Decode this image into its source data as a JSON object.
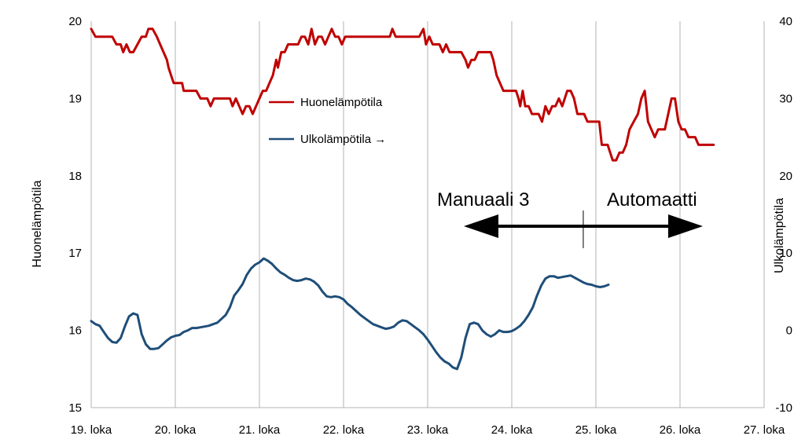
{
  "chart_data": {
    "type": "line",
    "x_unit": "day",
    "x_ticks": [
      "19. loka",
      "20. loka",
      "21. loka",
      "22. loka",
      "23. loka",
      "24. loka",
      "25. loka",
      "26. loka",
      "27. loka"
    ],
    "y_left_label": "Huonelämpötila",
    "y_left_lim": [
      15,
      20
    ],
    "y_left_ticks": [
      "15",
      "16",
      "17",
      "18",
      "19",
      "20"
    ],
    "y_right_label": "Ulkolämpötila",
    "y_right_lim": [
      -10,
      40
    ],
    "y_right_ticks": [
      "-10",
      "0",
      "10",
      "20",
      "30",
      "40"
    ],
    "grid": "vertical",
    "legend_position": "upper-middle",
    "annotations": {
      "left": "Manuaali 3",
      "right": "Automaatti",
      "divider_x": 24.85
    },
    "series": [
      {
        "name": "Huonelämpötila",
        "axis": "left",
        "color": "#c00000",
        "points": [
          [
            19.0,
            19.9
          ],
          [
            19.05,
            19.8
          ],
          [
            19.1,
            19.8
          ],
          [
            19.15,
            19.8
          ],
          [
            19.2,
            19.8
          ],
          [
            19.25,
            19.8
          ],
          [
            19.3,
            19.7
          ],
          [
            19.35,
            19.7
          ],
          [
            19.38,
            19.6
          ],
          [
            19.42,
            19.7
          ],
          [
            19.46,
            19.6
          ],
          [
            19.5,
            19.6
          ],
          [
            19.55,
            19.7
          ],
          [
            19.6,
            19.8
          ],
          [
            19.65,
            19.8
          ],
          [
            19.68,
            19.9
          ],
          [
            19.73,
            19.9
          ],
          [
            19.78,
            19.8
          ],
          [
            19.82,
            19.7
          ],
          [
            19.86,
            19.6
          ],
          [
            19.9,
            19.5
          ],
          [
            19.92,
            19.4
          ],
          [
            19.95,
            19.3
          ],
          [
            19.98,
            19.2
          ],
          [
            20.02,
            19.2
          ],
          [
            20.05,
            19.2
          ],
          [
            20.08,
            19.2
          ],
          [
            20.1,
            19.1
          ],
          [
            20.15,
            19.1
          ],
          [
            20.2,
            19.1
          ],
          [
            20.25,
            19.1
          ],
          [
            20.3,
            19.0
          ],
          [
            20.35,
            19.0
          ],
          [
            20.38,
            19.0
          ],
          [
            20.42,
            18.9
          ],
          [
            20.46,
            19.0
          ],
          [
            20.5,
            19.0
          ],
          [
            20.55,
            19.0
          ],
          [
            20.6,
            19.0
          ],
          [
            20.65,
            19.0
          ],
          [
            20.68,
            18.9
          ],
          [
            20.72,
            19.0
          ],
          [
            20.76,
            18.9
          ],
          [
            20.8,
            18.8
          ],
          [
            20.84,
            18.9
          ],
          [
            20.88,
            18.9
          ],
          [
            20.92,
            18.8
          ],
          [
            20.96,
            18.9
          ],
          [
            21.0,
            19.0
          ],
          [
            21.04,
            19.1
          ],
          [
            21.08,
            19.1
          ],
          [
            21.12,
            19.2
          ],
          [
            21.16,
            19.3
          ],
          [
            21.2,
            19.5
          ],
          [
            21.22,
            19.4
          ],
          [
            21.26,
            19.6
          ],
          [
            21.3,
            19.6
          ],
          [
            21.34,
            19.7
          ],
          [
            21.38,
            19.7
          ],
          [
            21.42,
            19.7
          ],
          [
            21.46,
            19.7
          ],
          [
            21.5,
            19.8
          ],
          [
            21.54,
            19.8
          ],
          [
            21.58,
            19.7
          ],
          [
            21.62,
            19.9
          ],
          [
            21.66,
            19.7
          ],
          [
            21.7,
            19.8
          ],
          [
            21.74,
            19.8
          ],
          [
            21.78,
            19.7
          ],
          [
            21.82,
            19.8
          ],
          [
            21.86,
            19.9
          ],
          [
            21.9,
            19.8
          ],
          [
            21.94,
            19.8
          ],
          [
            21.98,
            19.7
          ],
          [
            22.02,
            19.8
          ],
          [
            22.06,
            19.8
          ],
          [
            22.1,
            19.8
          ],
          [
            22.2,
            19.8
          ],
          [
            22.3,
            19.8
          ],
          [
            22.4,
            19.8
          ],
          [
            22.5,
            19.8
          ],
          [
            22.55,
            19.8
          ],
          [
            22.58,
            19.9
          ],
          [
            22.62,
            19.8
          ],
          [
            22.7,
            19.8
          ],
          [
            22.8,
            19.8
          ],
          [
            22.9,
            19.8
          ],
          [
            22.95,
            19.9
          ],
          [
            22.98,
            19.7
          ],
          [
            23.02,
            19.8
          ],
          [
            23.06,
            19.7
          ],
          [
            23.1,
            19.7
          ],
          [
            23.14,
            19.7
          ],
          [
            23.18,
            19.6
          ],
          [
            23.22,
            19.7
          ],
          [
            23.26,
            19.6
          ],
          [
            23.3,
            19.6
          ],
          [
            23.35,
            19.6
          ],
          [
            23.4,
            19.6
          ],
          [
            23.45,
            19.5
          ],
          [
            23.48,
            19.4
          ],
          [
            23.52,
            19.5
          ],
          [
            23.56,
            19.5
          ],
          [
            23.6,
            19.6
          ],
          [
            23.65,
            19.6
          ],
          [
            23.7,
            19.6
          ],
          [
            23.75,
            19.6
          ],
          [
            23.78,
            19.5
          ],
          [
            23.82,
            19.3
          ],
          [
            23.86,
            19.2
          ],
          [
            23.9,
            19.1
          ],
          [
            23.95,
            19.1
          ],
          [
            24.0,
            19.1
          ],
          [
            24.05,
            19.1
          ],
          [
            24.08,
            19.0
          ],
          [
            24.1,
            18.9
          ],
          [
            24.13,
            19.1
          ],
          [
            24.16,
            18.9
          ],
          [
            24.2,
            18.9
          ],
          [
            24.24,
            18.8
          ],
          [
            24.28,
            18.8
          ],
          [
            24.32,
            18.8
          ],
          [
            24.36,
            18.7
          ],
          [
            24.4,
            18.9
          ],
          [
            24.44,
            18.8
          ],
          [
            24.48,
            18.9
          ],
          [
            24.52,
            18.9
          ],
          [
            24.56,
            19.0
          ],
          [
            24.6,
            18.9
          ],
          [
            24.63,
            19.0
          ],
          [
            24.66,
            19.1
          ],
          [
            24.7,
            19.1
          ],
          [
            24.74,
            19.0
          ],
          [
            24.78,
            18.8
          ],
          [
            24.82,
            18.8
          ],
          [
            24.86,
            18.8
          ],
          [
            24.9,
            18.7
          ],
          [
            24.95,
            18.7
          ],
          [
            25.0,
            18.7
          ],
          [
            25.04,
            18.7
          ],
          [
            25.07,
            18.4
          ],
          [
            25.1,
            18.4
          ],
          [
            25.14,
            18.4
          ],
          [
            25.17,
            18.3
          ],
          [
            25.2,
            18.2
          ],
          [
            25.24,
            18.2
          ],
          [
            25.28,
            18.3
          ],
          [
            25.32,
            18.3
          ],
          [
            25.36,
            18.4
          ],
          [
            25.4,
            18.6
          ],
          [
            25.45,
            18.7
          ],
          [
            25.5,
            18.8
          ],
          [
            25.54,
            19.0
          ],
          [
            25.58,
            19.1
          ],
          [
            25.62,
            18.7
          ],
          [
            25.66,
            18.6
          ],
          [
            25.7,
            18.5
          ],
          [
            25.74,
            18.6
          ],
          [
            25.78,
            18.6
          ],
          [
            25.82,
            18.6
          ],
          [
            25.86,
            18.8
          ],
          [
            25.9,
            19.0
          ],
          [
            25.94,
            19.0
          ],
          [
            25.98,
            18.7
          ],
          [
            26.02,
            18.6
          ],
          [
            26.06,
            18.6
          ],
          [
            26.1,
            18.5
          ],
          [
            26.14,
            18.5
          ],
          [
            26.18,
            18.5
          ],
          [
            26.22,
            18.4
          ],
          [
            26.26,
            18.4
          ],
          [
            26.3,
            18.4
          ],
          [
            26.35,
            18.4
          ],
          [
            26.4,
            18.4
          ]
        ]
      },
      {
        "name": "Ulkolämpötila →",
        "axis": "right",
        "color": "#1f4e79",
        "points": [
          [
            19.0,
            1.2
          ],
          [
            19.05,
            0.8
          ],
          [
            19.1,
            0.6
          ],
          [
            19.15,
            -0.2
          ],
          [
            19.2,
            -1.0
          ],
          [
            19.25,
            -1.5
          ],
          [
            19.3,
            -1.6
          ],
          [
            19.35,
            -1.0
          ],
          [
            19.4,
            0.5
          ],
          [
            19.45,
            1.8
          ],
          [
            19.5,
            2.2
          ],
          [
            19.55,
            2.0
          ],
          [
            19.6,
            -0.5
          ],
          [
            19.65,
            -1.8
          ],
          [
            19.7,
            -2.4
          ],
          [
            19.75,
            -2.4
          ],
          [
            19.8,
            -2.3
          ],
          [
            19.85,
            -1.8
          ],
          [
            19.9,
            -1.3
          ],
          [
            19.95,
            -0.9
          ],
          [
            20.0,
            -0.7
          ],
          [
            20.05,
            -0.6
          ],
          [
            20.1,
            -0.2
          ],
          [
            20.15,
            0.0
          ],
          [
            20.2,
            0.3
          ],
          [
            20.25,
            0.3
          ],
          [
            20.3,
            0.4
          ],
          [
            20.35,
            0.5
          ],
          [
            20.4,
            0.6
          ],
          [
            20.45,
            0.8
          ],
          [
            20.5,
            1.0
          ],
          [
            20.55,
            1.5
          ],
          [
            20.6,
            2.0
          ],
          [
            20.65,
            3.0
          ],
          [
            20.7,
            4.5
          ],
          [
            20.75,
            5.2
          ],
          [
            20.8,
            6.0
          ],
          [
            20.85,
            7.2
          ],
          [
            20.9,
            8.0
          ],
          [
            20.95,
            8.5
          ],
          [
            21.0,
            8.8
          ],
          [
            21.05,
            9.3
          ],
          [
            21.1,
            9.0
          ],
          [
            21.15,
            8.6
          ],
          [
            21.2,
            8.0
          ],
          [
            21.25,
            7.5
          ],
          [
            21.3,
            7.2
          ],
          [
            21.35,
            6.8
          ],
          [
            21.4,
            6.5
          ],
          [
            21.45,
            6.4
          ],
          [
            21.5,
            6.5
          ],
          [
            21.55,
            6.7
          ],
          [
            21.6,
            6.6
          ],
          [
            21.65,
            6.3
          ],
          [
            21.7,
            5.8
          ],
          [
            21.75,
            5.0
          ],
          [
            21.8,
            4.4
          ],
          [
            21.85,
            4.3
          ],
          [
            21.9,
            4.4
          ],
          [
            21.95,
            4.3
          ],
          [
            22.0,
            4.0
          ],
          [
            22.05,
            3.4
          ],
          [
            22.1,
            3.0
          ],
          [
            22.15,
            2.5
          ],
          [
            22.2,
            2.0
          ],
          [
            22.25,
            1.6
          ],
          [
            22.3,
            1.2
          ],
          [
            22.35,
            0.8
          ],
          [
            22.4,
            0.6
          ],
          [
            22.45,
            0.4
          ],
          [
            22.5,
            0.2
          ],
          [
            22.55,
            0.3
          ],
          [
            22.6,
            0.5
          ],
          [
            22.65,
            1.0
          ],
          [
            22.7,
            1.3
          ],
          [
            22.75,
            1.2
          ],
          [
            22.8,
            0.8
          ],
          [
            22.85,
            0.4
          ],
          [
            22.9,
            0.0
          ],
          [
            22.95,
            -0.5
          ],
          [
            23.0,
            -1.2
          ],
          [
            23.05,
            -2.0
          ],
          [
            23.1,
            -2.8
          ],
          [
            23.15,
            -3.5
          ],
          [
            23.2,
            -4.0
          ],
          [
            23.25,
            -4.3
          ],
          [
            23.3,
            -4.8
          ],
          [
            23.35,
            -5.0
          ],
          [
            23.4,
            -3.5
          ],
          [
            23.45,
            -1.0
          ],
          [
            23.5,
            0.8
          ],
          [
            23.55,
            1.0
          ],
          [
            23.6,
            0.8
          ],
          [
            23.65,
            0.0
          ],
          [
            23.7,
            -0.5
          ],
          [
            23.75,
            -0.8
          ],
          [
            23.8,
            -0.5
          ],
          [
            23.85,
            0.0
          ],
          [
            23.9,
            -0.2
          ],
          [
            23.95,
            -0.2
          ],
          [
            24.0,
            -0.1
          ],
          [
            24.05,
            0.2
          ],
          [
            24.1,
            0.6
          ],
          [
            24.15,
            1.2
          ],
          [
            24.2,
            2.0
          ],
          [
            24.25,
            3.0
          ],
          [
            24.3,
            4.5
          ],
          [
            24.35,
            5.8
          ],
          [
            24.4,
            6.7
          ],
          [
            24.45,
            7.0
          ],
          [
            24.5,
            7.0
          ],
          [
            24.55,
            6.8
          ],
          [
            24.6,
            6.9
          ],
          [
            24.65,
            7.0
          ],
          [
            24.7,
            7.1
          ],
          [
            24.75,
            6.8
          ],
          [
            24.8,
            6.5
          ],
          [
            24.85,
            6.2
          ],
          [
            24.9,
            6.0
          ],
          [
            24.95,
            5.9
          ],
          [
            25.0,
            5.7
          ],
          [
            25.05,
            5.6
          ],
          [
            25.1,
            5.7
          ],
          [
            25.15,
            5.9
          ]
        ]
      }
    ]
  }
}
